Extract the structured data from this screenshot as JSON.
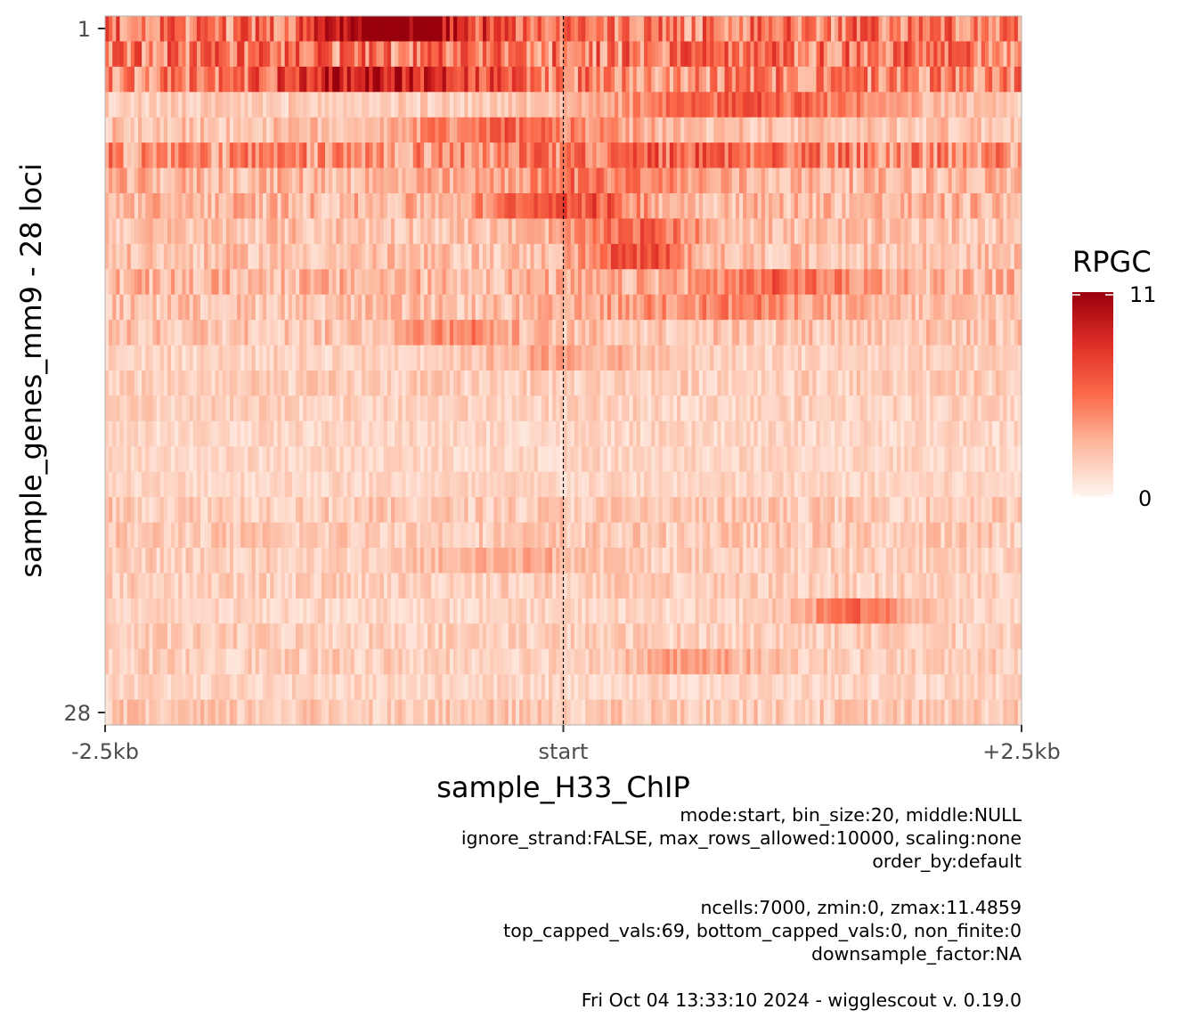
{
  "chart_data": {
    "type": "heatmap",
    "title": "",
    "xlabel": "sample_H33_ChIP",
    "ylabel": "sample_genes_mm9 - 28 loci",
    "x_ticks": [
      "-2.5kb",
      "start",
      "+2.5kb"
    ],
    "y_ticks": [
      "1",
      "28"
    ],
    "n_rows": 28,
    "n_bins": 250,
    "grid": false,
    "reference_line": "start",
    "legend": {
      "title": "RPGC",
      "min": 0,
      "max": 11,
      "min_label": "0",
      "max_label": "11",
      "placement": "right",
      "low_color": "#fff5f0",
      "mid_color": "#ef3b2c",
      "high_color": "#99000d"
    },
    "row_profiles": [
      {
        "row": 1,
        "base": 5.5,
        "peak_at": -0.9,
        "peak_width": 0.35,
        "peak_value": 11
      },
      {
        "row": 2,
        "base": 5.5,
        "peak_at": 0.0,
        "peak_width": 1.0,
        "peak_value": 0
      },
      {
        "row": 3,
        "base": 5.0,
        "peak_at": -1.0,
        "peak_width": 0.6,
        "peak_value": 6
      },
      {
        "row": 4,
        "base": 2.0,
        "peak_at": 1.0,
        "peak_width": 0.8,
        "peak_value": 5
      },
      {
        "row": 5,
        "base": 2.5,
        "peak_at": -0.3,
        "peak_width": 0.6,
        "peak_value": 4
      },
      {
        "row": 6,
        "base": 4.5,
        "peak_at": 0.8,
        "peak_width": 0.8,
        "peak_value": 2
      },
      {
        "row": 7,
        "base": 3.0,
        "peak_at": 0.2,
        "peak_width": 0.5,
        "peak_value": 3
      },
      {
        "row": 8,
        "base": 3.0,
        "peak_at": 0.0,
        "peak_width": 0.4,
        "peak_value": 5
      },
      {
        "row": 9,
        "base": 2.5,
        "peak_at": 0.4,
        "peak_width": 0.4,
        "peak_value": 4
      },
      {
        "row": 10,
        "base": 2.5,
        "peak_at": 0.4,
        "peak_width": 0.3,
        "peak_value": 5
      },
      {
        "row": 11,
        "base": 3.0,
        "peak_at": 1.2,
        "peak_width": 0.5,
        "peak_value": 3
      },
      {
        "row": 12,
        "base": 2.5,
        "peak_at": 0.8,
        "peak_width": 0.6,
        "peak_value": 3
      },
      {
        "row": 13,
        "base": 2.5,
        "peak_at": -0.6,
        "peak_width": 0.3,
        "peak_value": 3
      },
      {
        "row": 14,
        "base": 1.8,
        "peak_at": 0.0,
        "peak_width": 0.5,
        "peak_value": 2
      },
      {
        "row": 15,
        "base": 2.0,
        "peak_at": 0.0,
        "peak_width": 1.0,
        "peak_value": 0
      },
      {
        "row": 16,
        "base": 1.8,
        "peak_at": 0.0,
        "peak_width": 1.0,
        "peak_value": 0
      },
      {
        "row": 17,
        "base": 1.6,
        "peak_at": 0.0,
        "peak_width": 1.0,
        "peak_value": 0
      },
      {
        "row": 18,
        "base": 1.6,
        "peak_at": 0.0,
        "peak_width": 1.0,
        "peak_value": 0
      },
      {
        "row": 19,
        "base": 1.6,
        "peak_at": 0.0,
        "peak_width": 1.0,
        "peak_value": 0
      },
      {
        "row": 20,
        "base": 2.2,
        "peak_at": 0.0,
        "peak_width": 1.0,
        "peak_value": 0
      },
      {
        "row": 21,
        "base": 2.2,
        "peak_at": 0.0,
        "peak_width": 1.0,
        "peak_value": 0
      },
      {
        "row": 22,
        "base": 2.0,
        "peak_at": -0.3,
        "peak_width": 0.4,
        "peak_value": 2
      },
      {
        "row": 23,
        "base": 2.0,
        "peak_at": 0.0,
        "peak_width": 1.0,
        "peak_value": 0
      },
      {
        "row": 24,
        "base": 1.6,
        "peak_at": 1.6,
        "peak_width": 0.3,
        "peak_value": 5
      },
      {
        "row": 25,
        "base": 2.0,
        "peak_at": 0.0,
        "peak_width": 1.0,
        "peak_value": 0
      },
      {
        "row": 26,
        "base": 2.0,
        "peak_at": 0.7,
        "peak_width": 0.4,
        "peak_value": 2
      },
      {
        "row": 27,
        "base": 1.6,
        "peak_at": 0.0,
        "peak_width": 1.0,
        "peak_value": 0
      },
      {
        "row": 28,
        "base": 2.2,
        "peak_at": 0.0,
        "peak_width": 1.0,
        "peak_value": 0
      }
    ]
  },
  "caption": {
    "lines": [
      "mode:start, bin_size:20, middle:NULL",
      "ignore_strand:FALSE, max_rows_allowed:10000, scaling:none",
      "order_by:default",
      "",
      "ncells:7000, zmin:0, zmax:11.4859",
      "top_capped_vals:69, bottom_capped_vals:0, non_finite:0",
      "downsample_factor:NA",
      "",
      "Fri Oct 04 13:33:10 2024 - wigglescout v. 0.19.0"
    ]
  }
}
